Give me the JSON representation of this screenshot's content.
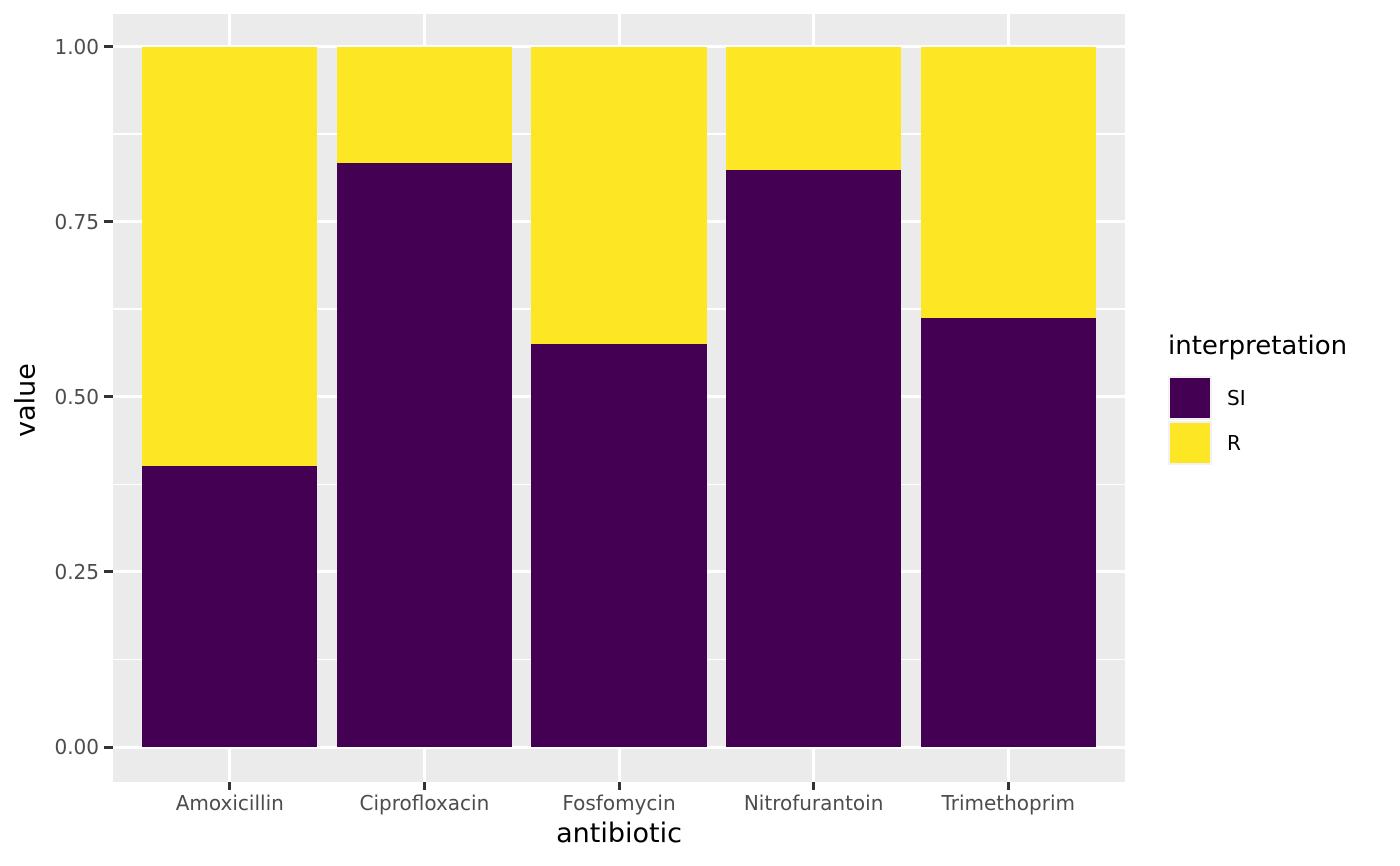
{
  "chart_data": {
    "type": "bar",
    "stacked": true,
    "orientation": "vertical",
    "title": "",
    "xlabel": "antibiotic",
    "ylabel": "value",
    "categories": [
      "Amoxicillin",
      "Ciprofloxacin",
      "Fosfomycin",
      "Nitrofurantoin",
      "Trimethoprim"
    ],
    "series": [
      {
        "name": "SI",
        "color": "#440154",
        "values": [
          0.401,
          0.833,
          0.575,
          0.824,
          0.613
        ]
      },
      {
        "name": "R",
        "color": "#FDE725",
        "values": [
          0.599,
          0.167,
          0.425,
          0.176,
          0.387
        ]
      }
    ],
    "ylim": [
      0,
      1
    ],
    "yticks": [
      0.0,
      0.25,
      0.5,
      0.75,
      1.0
    ],
    "ytick_labels": [
      "0.00",
      "0.25",
      "0.50",
      "0.75",
      "1.00"
    ],
    "legend_title": "interpretation",
    "legend_position": "right",
    "grid": true,
    "theme": "ggplot-grey",
    "colors": {
      "panel_background": "#EBEBEB",
      "gridline": "#FFFFFF",
      "axis_text": "#4D4D4D",
      "tick_mark": "#333333",
      "title_text": "#000000"
    }
  }
}
